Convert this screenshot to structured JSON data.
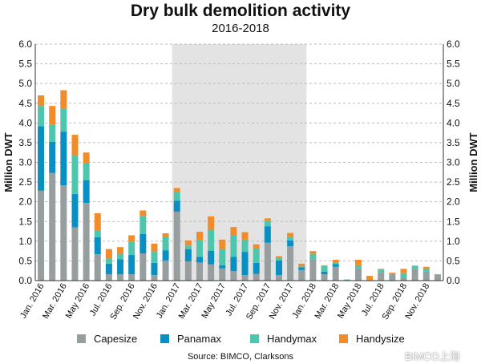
{
  "chart_data": {
    "type": "bar",
    "stacked": true,
    "title": "Dry bulk demolition activity",
    "subtitle": "2016-2018",
    "ylabel": "Million DWT",
    "ylim": [
      0,
      6
    ],
    "yticks": [
      "0.0",
      "0.5",
      "1.0",
      "1.5",
      "2.0",
      "2.5",
      "3.0",
      "3.5",
      "4.0",
      "4.5",
      "5.0",
      "5.5",
      "6.0"
    ],
    "tick_labels": [
      "Jan. 2016",
      "Mar. 2016",
      "May 2016",
      "Jul. 2016",
      "Sep. 2016",
      "Nov. 2016",
      "Jan. 2017",
      "Mar. 2017",
      "May 2017",
      "Jul. 2017",
      "Sep. 2017",
      "Nov. 2017",
      "Jan. 2018",
      "Mar. 2018",
      "May 2018",
      "Jul. 2018",
      "Sep. 2018",
      "Nov. 2018"
    ],
    "highlighted_period": "2017",
    "grid": true,
    "legend_position": "bottom",
    "series": [
      {
        "name": "Capesize",
        "color": "#969e9f",
        "values": [
          2.28,
          2.73,
          2.42,
          1.35,
          1.97,
          0.67,
          0.16,
          0.16,
          0.16,
          0.69,
          0.14,
          0.51,
          1.75,
          0.49,
          0.46,
          0.41,
          0.31,
          0.24,
          0.14,
          0.17,
          0.96,
          0.14,
          0.87,
          0.27,
          0.54,
          0.16,
          0.35,
          0,
          0.31,
          0,
          0.2,
          0.18,
          0.07,
          0.3,
          0.23,
          0.16
        ]
      },
      {
        "name": "Panamax",
        "color": "#0a8fc2",
        "values": [
          1.64,
          0.79,
          1.36,
          0.85,
          0.58,
          0.43,
          0.27,
          0.38,
          0.49,
          0.49,
          0.31,
          0.26,
          0.28,
          0.31,
          0.14,
          0.35,
          0.08,
          0.36,
          0.59,
          0.28,
          0.42,
          0.37,
          0.15,
          0.07,
          0,
          0.07,
          0.07,
          0,
          0,
          0,
          0,
          0,
          0,
          0,
          0,
          0
        ]
      },
      {
        "name": "Handymax",
        "color": "#4dc6ad",
        "values": [
          0.51,
          0.44,
          0.58,
          0.97,
          0.42,
          0.17,
          0.13,
          0.14,
          0.33,
          0.45,
          0.28,
          0.35,
          0.21,
          0.09,
          0.42,
          0.53,
          0.41,
          0.55,
          0.31,
          0.36,
          0.13,
          0.08,
          0.08,
          0.02,
          0.14,
          0.14,
          0.04,
          0.03,
          0.08,
          0,
          0.08,
          0,
          0.12,
          0.08,
          0.07,
          0
        ]
      },
      {
        "name": "Handysize",
        "color": "#f28c2a",
        "values": [
          0.27,
          0.47,
          0.47,
          0.53,
          0.28,
          0.44,
          0.24,
          0.17,
          0.17,
          0.15,
          0.21,
          0.08,
          0.11,
          0.13,
          0.22,
          0.34,
          0.24,
          0.21,
          0.19,
          0.11,
          0.07,
          0.03,
          0.11,
          0.07,
          0.07,
          0.02,
          0.07,
          0,
          0.14,
          0.12,
          0.02,
          0.02,
          0.11,
          0,
          0.05,
          0
        ]
      }
    ]
  },
  "source": "Source: BIMCO, Clarksons",
  "watermark": "BIMCO上海"
}
